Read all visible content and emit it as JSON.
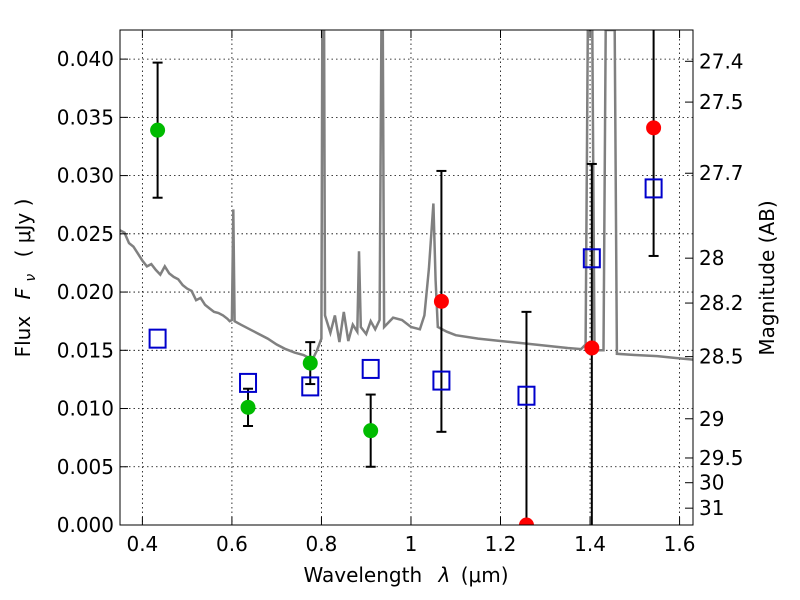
{
  "chart_data": {
    "type": "scatter",
    "xlabel_prefix": "Wavelength",
    "xlabel_symbol": "λ",
    "xlabel_unit": "(μm)",
    "ylabel_prefix": "Flux",
    "ylabel_symbol": "F",
    "ylabel_subscript": "ν",
    "ylabel_unit": "( μJy )",
    "y2label": "Magnitude (AB)",
    "xlim": [
      0.35,
      1.63
    ],
    "ylim": [
      0.0,
      0.0425
    ],
    "x_ticks": [
      {
        "value": 0.4,
        "label": "0.4"
      },
      {
        "value": 0.6,
        "label": "0.6"
      },
      {
        "value": 0.8,
        "label": "0.8"
      },
      {
        "value": 1.0,
        "label": "1"
      },
      {
        "value": 1.2,
        "label": "1.2"
      },
      {
        "value": 1.4,
        "label": "1.4"
      },
      {
        "value": 1.6,
        "label": "1.6"
      }
    ],
    "y_ticks": [
      {
        "value": 0.0,
        "label": "0.000"
      },
      {
        "value": 0.005,
        "label": "0.005"
      },
      {
        "value": 0.01,
        "label": "0.010"
      },
      {
        "value": 0.015,
        "label": "0.015"
      },
      {
        "value": 0.02,
        "label": "0.020"
      },
      {
        "value": 0.025,
        "label": "0.025"
      },
      {
        "value": 0.03,
        "label": "0.030"
      },
      {
        "value": 0.035,
        "label": "0.035"
      },
      {
        "value": 0.04,
        "label": "0.040"
      }
    ],
    "mag_ticks": [
      {
        "label": "27.4",
        "mag": 27.4
      },
      {
        "label": "27.5",
        "mag": 27.5
      },
      {
        "label": "27.7",
        "mag": 27.7
      },
      {
        "label": "28",
        "mag": 28.0
      },
      {
        "label": "28.2",
        "mag": 28.2
      },
      {
        "label": "28.5",
        "mag": 28.5
      },
      {
        "label": "29",
        "mag": 29.0
      },
      {
        "label": "29.5",
        "mag": 29.5
      },
      {
        "label": "30",
        "mag": 30.0
      },
      {
        "label": "31",
        "mag": 31.0
      }
    ],
    "grid": true,
    "colors": {
      "spectrum": "#808080",
      "detection": "#00bb00",
      "upper": "#ff0000",
      "model": "#0000cc",
      "errorbar": "#000000"
    },
    "spectrum": [
      [
        0.35,
        0.0253
      ],
      [
        0.36,
        0.0251
      ],
      [
        0.37,
        0.0242
      ],
      [
        0.38,
        0.0239
      ],
      [
        0.39,
        0.0233
      ],
      [
        0.4,
        0.0227
      ],
      [
        0.41,
        0.0222
      ],
      [
        0.42,
        0.0224
      ],
      [
        0.43,
        0.0219
      ],
      [
        0.44,
        0.0215
      ],
      [
        0.45,
        0.0222
      ],
      [
        0.46,
        0.0216
      ],
      [
        0.47,
        0.0213
      ],
      [
        0.48,
        0.0211
      ],
      [
        0.49,
        0.0206
      ],
      [
        0.5,
        0.0203
      ],
      [
        0.51,
        0.0201
      ],
      [
        0.52,
        0.0193
      ],
      [
        0.53,
        0.0195
      ],
      [
        0.54,
        0.0189
      ],
      [
        0.55,
        0.0186
      ],
      [
        0.56,
        0.0183
      ],
      [
        0.57,
        0.0182
      ],
      [
        0.58,
        0.018
      ],
      [
        0.59,
        0.0177
      ],
      [
        0.595,
        0.0175
      ],
      [
        0.6,
        0.0176
      ],
      [
        0.603,
        0.0271
      ],
      [
        0.606,
        0.0175
      ],
      [
        0.62,
        0.0172
      ],
      [
        0.64,
        0.0168
      ],
      [
        0.66,
        0.0164
      ],
      [
        0.68,
        0.016
      ],
      [
        0.7,
        0.0155
      ],
      [
        0.72,
        0.0151
      ],
      [
        0.74,
        0.0148
      ],
      [
        0.76,
        0.0146
      ],
      [
        0.78,
        0.0142
      ],
      [
        0.79,
        0.015
      ],
      [
        0.8,
        0.016
      ],
      [
        0.802,
        0.0425
      ],
      [
        0.806,
        0.0425
      ],
      [
        0.808,
        0.018
      ],
      [
        0.82,
        0.0165
      ],
      [
        0.83,
        0.018
      ],
      [
        0.84,
        0.0157
      ],
      [
        0.85,
        0.0183
      ],
      [
        0.86,
        0.0158
      ],
      [
        0.87,
        0.0172
      ],
      [
        0.88,
        0.0166
      ],
      [
        0.884,
        0.0235
      ],
      [
        0.888,
        0.017
      ],
      [
        0.9,
        0.0164
      ],
      [
        0.91,
        0.0175
      ],
      [
        0.92,
        0.0168
      ],
      [
        0.93,
        0.0176
      ],
      [
        0.934,
        0.0425
      ],
      [
        0.937,
        0.0425
      ],
      [
        0.94,
        0.017
      ],
      [
        0.96,
        0.0178
      ],
      [
        0.98,
        0.0176
      ],
      [
        1.0,
        0.017
      ],
      [
        1.02,
        0.0168
      ],
      [
        1.03,
        0.018
      ],
      [
        1.04,
        0.022
      ],
      [
        1.05,
        0.0276
      ],
      [
        1.055,
        0.021
      ],
      [
        1.06,
        0.017
      ],
      [
        1.08,
        0.0166
      ],
      [
        1.1,
        0.0163
      ],
      [
        1.15,
        0.016
      ],
      [
        1.2,
        0.0158
      ],
      [
        1.25,
        0.0156
      ],
      [
        1.3,
        0.0154
      ],
      [
        1.35,
        0.0152
      ],
      [
        1.38,
        0.0151
      ],
      [
        1.39,
        0.0155
      ],
      [
        1.395,
        0.0425
      ],
      [
        1.405,
        0.0425
      ],
      [
        1.41,
        0.015
      ],
      [
        1.43,
        0.015
      ],
      [
        1.435,
        0.0425
      ],
      [
        1.455,
        0.0425
      ],
      [
        1.46,
        0.0147
      ],
      [
        1.5,
        0.0146
      ],
      [
        1.55,
        0.0145
      ],
      [
        1.6,
        0.0143
      ],
      [
        1.63,
        0.0142
      ]
    ],
    "points": [
      {
        "x": 0.434,
        "y": 0.0339,
        "err": 0.0058,
        "kind": "detection"
      },
      {
        "x": 0.636,
        "y": 0.0101,
        "err": 0.0016,
        "kind": "detection"
      },
      {
        "x": 0.775,
        "y": 0.0139,
        "err": 0.0018,
        "kind": "detection"
      },
      {
        "x": 0.91,
        "y": 0.0081,
        "err": 0.0031,
        "kind": "detection"
      },
      {
        "x": 1.068,
        "y": 0.0192,
        "err": 0.0112,
        "kind": "upper"
      },
      {
        "x": 1.258,
        "y": 0.0,
        "err": 0.0183,
        "kind": "upper"
      },
      {
        "x": 1.404,
        "y": 0.0152,
        "err": 0.0158,
        "kind": "upper"
      },
      {
        "x": 1.542,
        "y": 0.0341,
        "err": 0.011,
        "kind": "upper"
      }
    ],
    "model_points": [
      {
        "x": 0.434,
        "y": 0.016
      },
      {
        "x": 0.636,
        "y": 0.0122
      },
      {
        "x": 0.775,
        "y": 0.0119
      },
      {
        "x": 0.91,
        "y": 0.0134
      },
      {
        "x": 1.068,
        "y": 0.0124
      },
      {
        "x": 1.258,
        "y": 0.0111
      },
      {
        "x": 1.404,
        "y": 0.0229
      },
      {
        "x": 1.542,
        "y": 0.0289
      }
    ]
  }
}
